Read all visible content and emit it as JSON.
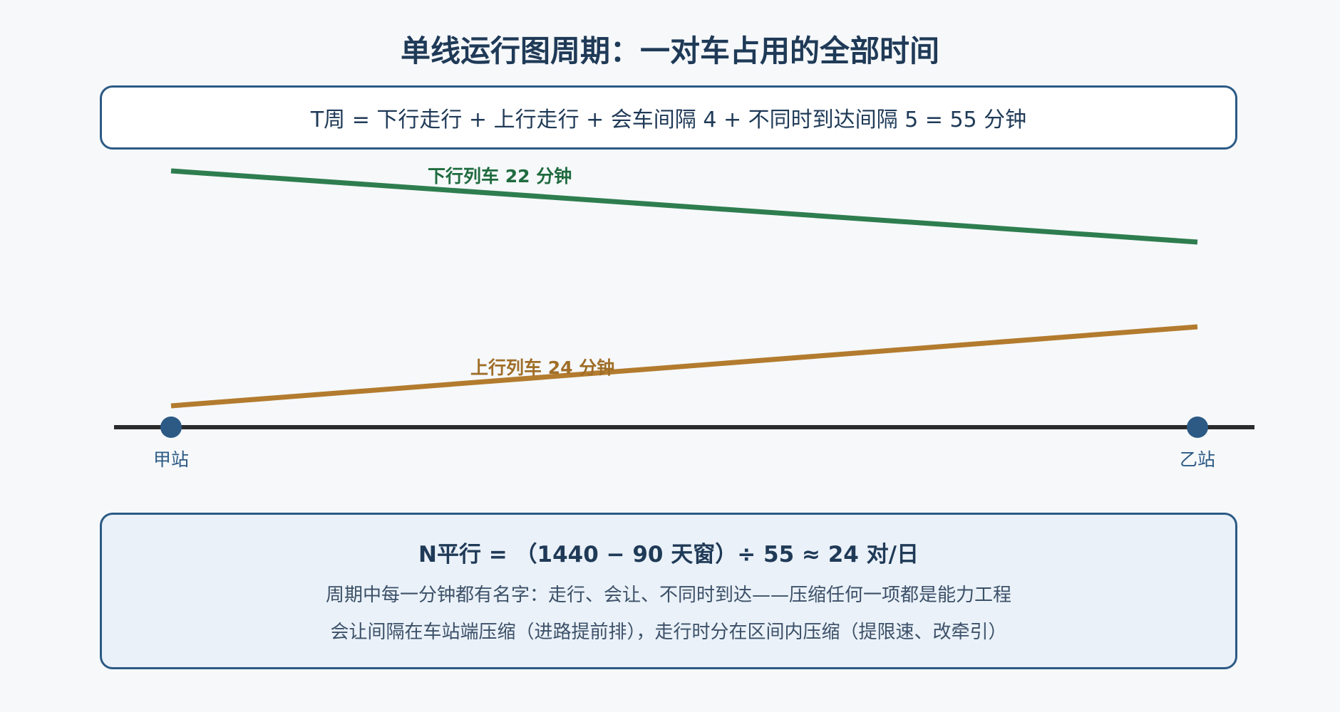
{
  "title": "单线运行图周期：一对车占用的全部时间",
  "formula": "T周 = 下行走行 + 上行走行 + 会车间隔 4 + 不同时到达间隔 5 = 55 分钟",
  "diagram": {
    "down_train_label": "下行列车 22 分钟",
    "up_train_label": "上行列车 24 分钟",
    "station_a": "甲站",
    "station_b": "乙站",
    "colors": {
      "down_train": "#2e7d4f",
      "up_train": "#b37b2e",
      "baseline": "#2b2b2b",
      "station": "#2c5a85"
    }
  },
  "result": {
    "headline": "N平行 = （1440 − 90 天窗）÷ 55 ≈ 24 对/日",
    "note_1": "周期中每一分钟都有名字：走行、会让、不同时到达——压缩任何一项都是能力工程",
    "note_2": "会让间隔在车站端压缩（进路提前排），走行时分在区间内压缩（提限速、改牵引）"
  }
}
